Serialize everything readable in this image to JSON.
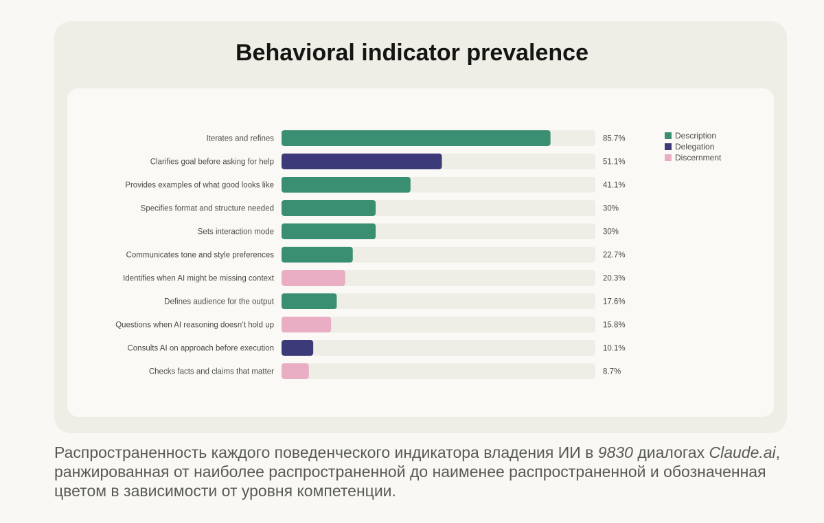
{
  "chart_data": {
    "type": "bar",
    "orientation": "horizontal",
    "title": "Behavioral indicator prevalence",
    "xlim": [
      0,
      100
    ],
    "grid": false,
    "legend_position": "top-right",
    "categories": [
      "Iterates and refines",
      "Clarifies goal before asking for help",
      "Provides examples of what good looks like",
      "Specifies format and structure needed",
      "Sets interaction mode",
      "Communicates tone and style preferences",
      "Identifies when AI might be missing context",
      "Defines audience for the output",
      "Questions when AI reasoning doesn’t hold up",
      "Consults AI on approach before execution",
      "Checks facts and claims that matter"
    ],
    "values": [
      85.7,
      51.1,
      41.1,
      30,
      30,
      22.7,
      20.3,
      17.6,
      15.8,
      10.1,
      8.7
    ],
    "value_labels": [
      "85.7%",
      "51.1%",
      "41.1%",
      "30%",
      "30%",
      "22.7%",
      "20.3%",
      "17.6%",
      "15.8%",
      "10.1%",
      "8.7%"
    ],
    "groups": [
      "Description",
      "Delegation",
      "Description",
      "Description",
      "Description",
      "Description",
      "Discernment",
      "Description",
      "Discernment",
      "Delegation",
      "Discernment"
    ],
    "legend": [
      {
        "name": "Description",
        "color": "#3a8f73"
      },
      {
        "name": "Delegation",
        "color": "#3d3a7a"
      },
      {
        "name": "Discernment",
        "color": "#eaaec4"
      }
    ],
    "track_color": "#efeee6"
  },
  "caption": {
    "part1": "Распространенность каждого поведенческого индикатора владения ИИ в ",
    "count": "9830",
    "part2": " диалогах ",
    "source": "Claude.ai",
    "part3": ", ранжированная от наиболее распространенной до наименее распространенной и обозначенная цветом в зависимости от уровня компетенции."
  }
}
